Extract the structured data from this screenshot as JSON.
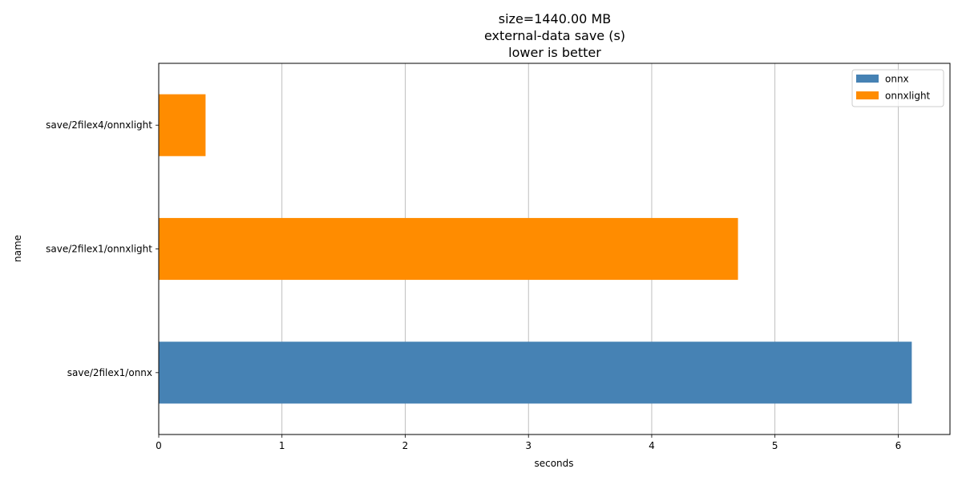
{
  "chart_data": {
    "type": "bar",
    "orientation": "horizontal",
    "title_lines": [
      "size=1440.00 MB",
      "external-data save (s)",
      "lower is better"
    ],
    "xlabel": "seconds",
    "ylabel": "name",
    "xlim": [
      0,
      6.42
    ],
    "xticks": [
      0,
      1,
      2,
      3,
      4,
      5,
      6
    ],
    "grid": "x",
    "legend_position": "top-right",
    "categories": [
      "save/2filex4/onnxlight",
      "save/2filex1/onnxlight",
      "save/2filex1/onnx"
    ],
    "values": [
      0.38,
      4.7,
      6.11
    ],
    "series_of_bar": [
      "onnxlight",
      "onnxlight",
      "onnx"
    ],
    "series": [
      {
        "name": "onnx",
        "color": "#4682b4"
      },
      {
        "name": "onnxlight",
        "color": "#ff8c00"
      }
    ]
  }
}
